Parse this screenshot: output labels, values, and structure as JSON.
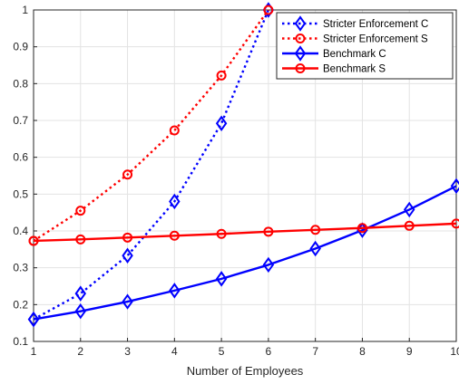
{
  "chart_data": {
    "type": "line",
    "xlabel": "Number of Employees",
    "ylabel": "",
    "xlim": [
      1,
      10
    ],
    "ylim": [
      0.1,
      1
    ],
    "xticks": [
      1,
      2,
      3,
      4,
      5,
      6,
      7,
      8,
      9,
      10
    ],
    "yticks": [
      0.1,
      0.2,
      0.3,
      0.4,
      0.5,
      0.6,
      0.7,
      0.8,
      0.9,
      1
    ],
    "grid": true,
    "legend_position": "top-right",
    "series": [
      {
        "name": "Stricter Enforcement C",
        "color": "#0000ff",
        "line_style": "dotted",
        "marker": "diamond",
        "x": [
          1,
          2,
          3,
          4,
          5,
          6
        ],
        "y": [
          0.16,
          0.23,
          0.333,
          0.48,
          0.692,
          1.0
        ]
      },
      {
        "name": "Stricter Enforcement S",
        "color": "#ff0000",
        "line_style": "dotted",
        "marker": "circle",
        "x": [
          1,
          2,
          3,
          4,
          5,
          6
        ],
        "y": [
          0.373,
          0.455,
          0.553,
          0.673,
          0.822,
          1.0
        ]
      },
      {
        "name": "Benchmark C",
        "color": "#0000ff",
        "line_style": "solid",
        "marker": "diamond",
        "x": [
          1,
          2,
          3,
          4,
          5,
          6,
          7,
          8,
          9,
          10
        ],
        "y": [
          0.16,
          0.182,
          0.208,
          0.238,
          0.27,
          0.308,
          0.352,
          0.402,
          0.458,
          0.522
        ]
      },
      {
        "name": "Benchmark S",
        "color": "#ff0000",
        "line_style": "solid",
        "marker": "circle",
        "x": [
          1,
          2,
          3,
          4,
          5,
          6,
          7,
          8,
          9,
          10
        ],
        "y": [
          0.373,
          0.377,
          0.382,
          0.387,
          0.392,
          0.398,
          0.403,
          0.408,
          0.414,
          0.42
        ]
      }
    ]
  }
}
